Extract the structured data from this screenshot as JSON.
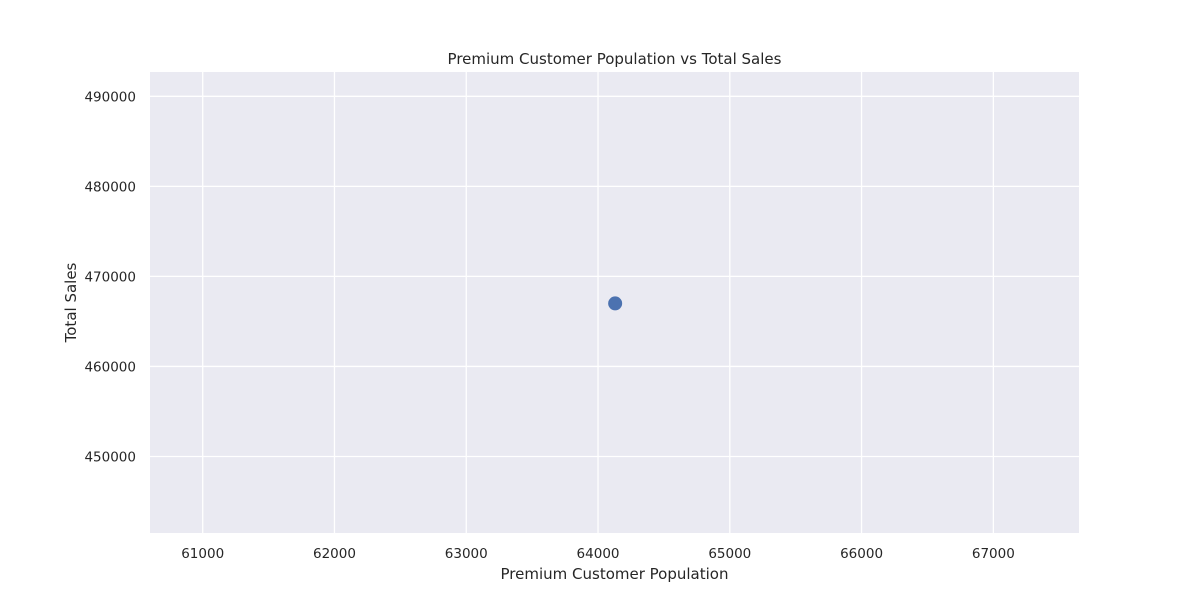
{
  "chart_data": {
    "type": "scatter",
    "title": "Premium Customer Population vs Total Sales",
    "xlabel": "Premium Customer Population",
    "ylabel": "Total Sales",
    "xlim": [
      60600,
      67650
    ],
    "ylim": [
      441500,
      492700
    ],
    "xticks": [
      61000,
      62000,
      63000,
      64000,
      65000,
      66000,
      67000
    ],
    "yticks": [
      450000,
      460000,
      470000,
      480000,
      490000
    ],
    "grid": true,
    "legend": null,
    "series": [
      {
        "color": "#4c72b0",
        "points": [
          {
            "x": 64130,
            "y": 467000
          }
        ]
      }
    ]
  }
}
